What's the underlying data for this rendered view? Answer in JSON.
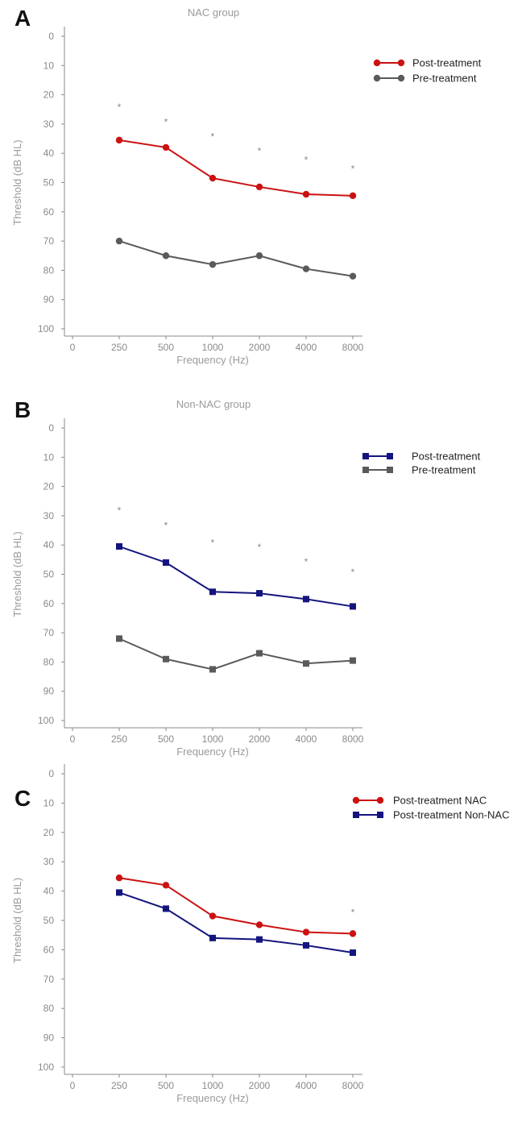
{
  "chart_data": [
    {
      "type": "line",
      "panel": "A",
      "title": "NAC group",
      "xlabel": "Frequency (Hz)",
      "ylabel": "Threshold (dB HL)",
      "x_ticks": [
        "0",
        "250",
        "500",
        "1000",
        "2000",
        "4000",
        "8000"
      ],
      "categories": [
        "250",
        "500",
        "1000",
        "2000",
        "4000",
        "8000"
      ],
      "ylim": [
        0,
        100
      ],
      "y_inverted": true,
      "y_ticks": [
        0,
        10,
        20,
        30,
        40,
        50,
        60,
        70,
        80,
        90,
        100
      ],
      "legend_position": "top-right",
      "series": [
        {
          "name": "Post-treatment",
          "color": "#cc1111",
          "marker": "circle",
          "values": [
            35.5,
            38,
            48.5,
            51.5,
            54,
            54.5
          ]
        },
        {
          "name": "Pre-treatment",
          "color": "#5a5a5a",
          "marker": "circle",
          "values": [
            70,
            75,
            78,
            75,
            79.5,
            82
          ]
        }
      ],
      "annotations": [
        {
          "text": "*",
          "x": "250",
          "y": 24
        },
        {
          "text": "*",
          "x": "500",
          "y": 29
        },
        {
          "text": "*",
          "x": "1000",
          "y": 34
        },
        {
          "text": "*",
          "x": "2000",
          "y": 39
        },
        {
          "text": "*",
          "x": "4000",
          "y": 42
        },
        {
          "text": "*",
          "x": "8000",
          "y": 45
        }
      ]
    },
    {
      "type": "line",
      "panel": "B",
      "title": "Non-NAC group",
      "xlabel": "Frequency (Hz)",
      "ylabel": "Threshold (dB HL)",
      "x_ticks": [
        "0",
        "250",
        "500",
        "1000",
        "2000",
        "4000",
        "8000"
      ],
      "categories": [
        "250",
        "500",
        "1000",
        "2000",
        "4000",
        "8000"
      ],
      "ylim": [
        0,
        100
      ],
      "y_inverted": true,
      "y_ticks": [
        0,
        10,
        20,
        30,
        40,
        50,
        60,
        70,
        80,
        90,
        100
      ],
      "legend_position": "top-right",
      "series": [
        {
          "name": "Post-treatment",
          "color": "#14147f",
          "marker": "square",
          "values": [
            40.5,
            46,
            56,
            56.5,
            58.5,
            61
          ]
        },
        {
          "name": "Pre-treatment",
          "color": "#5a5a5a",
          "marker": "square",
          "values": [
            72,
            79,
            82.5,
            77,
            80.5,
            79.5
          ]
        }
      ],
      "annotations": [
        {
          "text": "*",
          "x": "250",
          "y": 28
        },
        {
          "text": "*",
          "x": "500",
          "y": 33
        },
        {
          "text": "*",
          "x": "1000",
          "y": 39
        },
        {
          "text": "*",
          "x": "2000",
          "y": 40.5
        },
        {
          "text": "*",
          "x": "4000",
          "y": 45.5
        },
        {
          "text": "*",
          "x": "8000",
          "y": 49
        }
      ]
    },
    {
      "type": "line",
      "panel": "C",
      "title": "",
      "xlabel": "Frequency (Hz)",
      "ylabel": "Threshold (dB HL)",
      "x_ticks": [
        "0",
        "250",
        "500",
        "1000",
        "2000",
        "4000",
        "8000"
      ],
      "categories": [
        "250",
        "500",
        "1000",
        "2000",
        "4000",
        "8000"
      ],
      "ylim": [
        0,
        100
      ],
      "y_inverted": true,
      "y_ticks": [
        0,
        10,
        20,
        30,
        40,
        50,
        60,
        70,
        80,
        90,
        100
      ],
      "legend_position": "top-right",
      "series": [
        {
          "name": "Post-treatment NAC",
          "color": "#cc1111",
          "marker": "circle",
          "values": [
            35.5,
            38,
            48.5,
            51.5,
            54,
            54.5
          ]
        },
        {
          "name": "Post-treatment Non-NAC",
          "color": "#14147f",
          "marker": "square",
          "values": [
            40.5,
            46,
            56,
            56.5,
            58.5,
            61
          ]
        }
      ],
      "annotations": [
        {
          "text": "*",
          "x": "8000",
          "y": 47
        }
      ]
    }
  ]
}
